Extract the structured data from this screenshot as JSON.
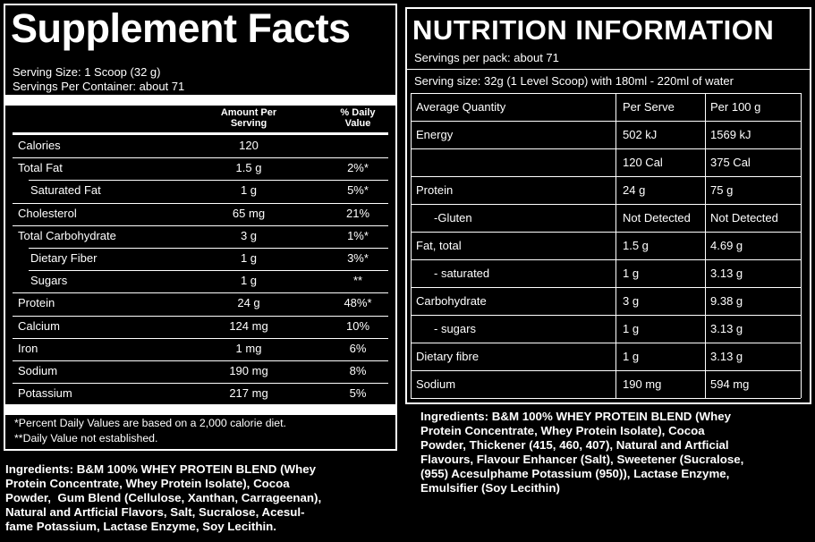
{
  "supplement": {
    "title": "Supplement Facts",
    "serving_size": "Serving Size: 1 Scoop (32 g)",
    "servings_per_container": "Servings Per Container: about 71",
    "col_amount": "Amount Per Serving",
    "col_dv": "% Daily Value",
    "rows": [
      {
        "name": "Calories",
        "amount": "120",
        "dv": ""
      },
      {
        "name": "Total Fat",
        "amount": "1.5 g",
        "dv": "2%*"
      },
      {
        "name": "Saturated Fat",
        "amount": "1 g",
        "dv": "5%*"
      },
      {
        "name": "Cholesterol",
        "amount": "65 mg",
        "dv": "21%"
      },
      {
        "name": "Total Carbohydrate",
        "amount": "3 g",
        "dv": "1%*"
      },
      {
        "name": "Dietary Fiber",
        "amount": "1 g",
        "dv": "3%*"
      },
      {
        "name": "Sugars",
        "amount": "1 g",
        "dv": "**"
      },
      {
        "name": "Protein",
        "amount": "24 g",
        "dv": "48%*"
      },
      {
        "name": "Calcium",
        "amount": "124 mg",
        "dv": "10%"
      },
      {
        "name": "Iron",
        "amount": "1 mg",
        "dv": "6%"
      },
      {
        "name": "Sodium",
        "amount": "190 mg",
        "dv": "8%"
      },
      {
        "name": "Potassium",
        "amount": "217 mg",
        "dv": "5%"
      }
    ],
    "footnote1": "*Percent Daily Values are based on a 2,000 calorie diet.",
    "footnote2": "**Daily Value not established."
  },
  "ingredients_us": "Ingredients: B&M 100% WHEY PROTEIN BLEND (Whey\nProtein Concentrate, Whey Protein Isolate), Cocoa\nPowder,  Gum Blend (Cellulose, Xanthan, Carrageenan),\nNatural and Artficial Flavors, Salt, Sucralose, Acesul-\nfame Potassium, Lactase Enzyme, Soy Lecithin.",
  "nutrition": {
    "title": "NUTRITION INFORMATION",
    "servings_per_pack": "Servings per pack: about 71",
    "serving_size": "Serving size: 32g (1 Level Scoop) with 180ml - 220ml of water",
    "header": {
      "name": "Average Quantity",
      "serve": "Per Serve",
      "per100": "Per 100 g"
    },
    "rows": [
      {
        "name": "Energy",
        "serve": "502 kJ",
        "per100": "1569 kJ"
      },
      {
        "name": "",
        "serve": "120 Cal",
        "per100": "375 Cal"
      },
      {
        "name": "Protein",
        "serve": "24 g",
        "per100": "75 g"
      },
      {
        "name": "-Gluten",
        "serve": "Not Detected",
        "per100": "Not Detected"
      },
      {
        "name": "Fat, total",
        "serve": "1.5 g",
        "per100": "4.69 g"
      },
      {
        "name": "- saturated",
        "serve": "1 g",
        "per100": "3.13 g"
      },
      {
        "name": "Carbohydrate",
        "serve": "3 g",
        "per100": "9.38 g"
      },
      {
        "name": "- sugars",
        "serve": "1 g",
        "per100": "3.13 g"
      },
      {
        "name": "Dietary fibre",
        "serve": "1 g",
        "per100": "3.13 g"
      },
      {
        "name": "Sodium",
        "serve": "190 mg",
        "per100": "594 mg"
      }
    ]
  },
  "ingredients_au": "Ingredients: B&M 100% WHEY PROTEIN BLEND (Whey\nProtein Concentrate, Whey Protein Isolate), Cocoa\nPowder, Thickener (415, 460, 407), Natural and Artficial\nFlavours, Flavour Enhancer (Salt), Sweetener (Sucralose,\n(955) Acesulphame Potassium (950)), Lactase Enzyme,\nEmulsifier (Soy Lecithin)"
}
